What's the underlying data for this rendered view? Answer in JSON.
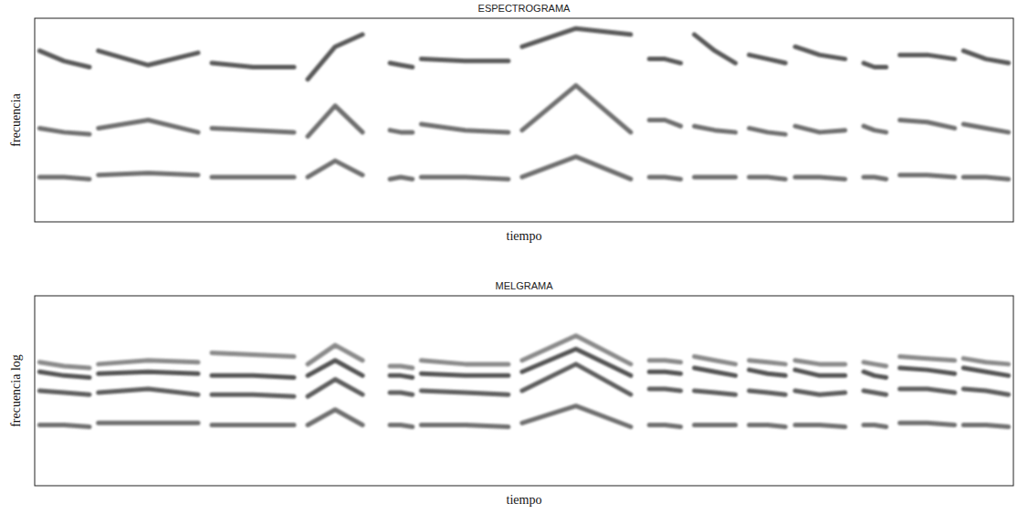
{
  "chart_data": [
    {
      "type": "line",
      "title": "ESPECTROGRAMA",
      "xlabel": "tiempo",
      "ylabel": "frecuencia",
      "xlim": [
        0,
        100
      ],
      "ylim": [
        0,
        100
      ],
      "tick_labels": false,
      "grid": false,
      "x": [
        0.5,
        3,
        5.6,
        6,
        6.5,
        11.6,
        16.7,
        17.4,
        18.1,
        22.3,
        26.5,
        27.2,
        27.9,
        30.7,
        33.5,
        34.9,
        36.3,
        37.4,
        38.6,
        39,
        39.5,
        44,
        48.4,
        49.1,
        49.8,
        55.3,
        60.9,
        61.8,
        62.8,
        64.4,
        66,
        66.7,
        67.4,
        69.5,
        71.6,
        72.3,
        73,
        74.9,
        76.7,
        77.2,
        77.7,
        80.2,
        82.8,
        83.7,
        84.7,
        85.8,
        87,
        87.7,
        88.4,
        91.2,
        94,
        94.4,
        94.9,
        97.2,
        99.5
      ],
      "series": [
        {
          "color": "#6f6f6f",
          "values": [
            22,
            22,
            21,
            null,
            23,
            24,
            23,
            null,
            22,
            22,
            22,
            null,
            22,
            30,
            23,
            null,
            21,
            22,
            21,
            null,
            22,
            22,
            21,
            null,
            22,
            32,
            21,
            null,
            22,
            22,
            21,
            null,
            22,
            22,
            22,
            null,
            22,
            22,
            21,
            null,
            22,
            22,
            21,
            null,
            22,
            22,
            21,
            null,
            23,
            23,
            22,
            null,
            22,
            22,
            21
          ]
        },
        {
          "color": "#6f6f6f",
          "values": [
            46,
            44,
            43,
            null,
            46,
            50,
            44,
            null,
            46,
            45,
            44,
            null,
            42,
            57,
            44,
            null,
            45,
            44,
            44,
            null,
            48,
            45,
            44,
            null,
            45,
            67,
            44,
            null,
            50,
            50,
            47,
            null,
            47,
            45,
            44,
            null,
            46,
            44,
            43,
            null,
            47,
            44,
            45,
            null,
            47,
            45,
            44,
            null,
            50,
            49,
            46,
            null,
            48,
            46,
            44
          ]
        },
        {
          "color": "#5a5a5a",
          "values": [
            84,
            79,
            76,
            null,
            84,
            77,
            83,
            null,
            78,
            76,
            76,
            null,
            70,
            86,
            92,
            null,
            78,
            77,
            76,
            null,
            80,
            79,
            79,
            null,
            86,
            95,
            92,
            null,
            80,
            80,
            78,
            null,
            92,
            84,
            78,
            null,
            82,
            80,
            78,
            null,
            86,
            82,
            80,
            null,
            78,
            76,
            76,
            null,
            82,
            82,
            80,
            null,
            84,
            80,
            78
          ]
        }
      ]
    },
    {
      "type": "line",
      "title": "MELGRAMA",
      "xlabel": "tiempo",
      "ylabel": "frecuencia log",
      "xlim": [
        0,
        100
      ],
      "ylim": [
        0,
        100
      ],
      "tick_labels": false,
      "grid": false,
      "x": [
        0.5,
        3,
        5.6,
        6,
        6.5,
        11.6,
        16.7,
        17.4,
        18.1,
        22.3,
        26.5,
        27.2,
        27.9,
        30.7,
        33.5,
        34.9,
        36.3,
        37.4,
        38.6,
        39,
        39.5,
        44,
        48.4,
        49.1,
        49.8,
        55.3,
        60.9,
        61.8,
        62.8,
        64.4,
        66,
        66.7,
        67.4,
        69.5,
        71.6,
        72.3,
        73,
        74.9,
        76.7,
        77.2,
        77.7,
        80.2,
        82.8,
        83.7,
        84.7,
        85.8,
        87,
        87.7,
        88.4,
        91.2,
        94,
        94.4,
        94.9,
        97.2,
        99.5
      ],
      "series": [
        {
          "color": "#6f6f6f",
          "values": [
            32,
            32,
            31,
            null,
            33,
            33,
            33,
            null,
            32,
            32,
            32,
            null,
            32,
            40,
            32,
            null,
            32,
            32,
            31,
            null,
            32,
            32,
            31,
            null,
            33,
            42,
            31,
            null,
            32,
            32,
            31,
            null,
            32,
            32,
            32,
            null,
            32,
            32,
            31,
            null,
            32,
            32,
            31,
            null,
            32,
            32,
            31,
            null,
            33,
            33,
            32,
            null,
            32,
            32,
            31
          ]
        },
        {
          "color": "#5e5e5e",
          "values": [
            50,
            49,
            48,
            null,
            49,
            51,
            48,
            null,
            48,
            48,
            47,
            null,
            47,
            56,
            48,
            null,
            49,
            49,
            48,
            null,
            50,
            49,
            48,
            null,
            50,
            64,
            48,
            null,
            51,
            51,
            50,
            null,
            50,
            49,
            48,
            null,
            50,
            49,
            48,
            null,
            50,
            48,
            49,
            null,
            50,
            49,
            48,
            null,
            51,
            51,
            49,
            null,
            51,
            50,
            48
          ]
        },
        {
          "color": "#555555",
          "values": [
            60,
            58,
            57,
            null,
            59,
            60,
            59,
            null,
            58,
            58,
            57,
            null,
            58,
            66,
            58,
            null,
            58,
            58,
            57,
            null,
            59,
            58,
            58,
            null,
            60,
            72,
            58,
            null,
            60,
            60,
            59,
            null,
            62,
            60,
            58,
            null,
            61,
            59,
            58,
            null,
            61,
            58,
            58,
            null,
            60,
            58,
            57,
            null,
            62,
            61,
            59,
            null,
            62,
            60,
            58
          ]
        },
        {
          "color": "#8a8a8a",
          "values": [
            65,
            63,
            62,
            null,
            64,
            66,
            65,
            null,
            70,
            69,
            68,
            null,
            64,
            74,
            66,
            null,
            63,
            63,
            62,
            null,
            66,
            64,
            64,
            null,
            66,
            79,
            64,
            null,
            66,
            66,
            65,
            null,
            68,
            66,
            64,
            null,
            66,
            65,
            64,
            null,
            66,
            64,
            64,
            null,
            65,
            64,
            63,
            null,
            68,
            67,
            66,
            null,
            67,
            65,
            64
          ]
        }
      ]
    }
  ]
}
